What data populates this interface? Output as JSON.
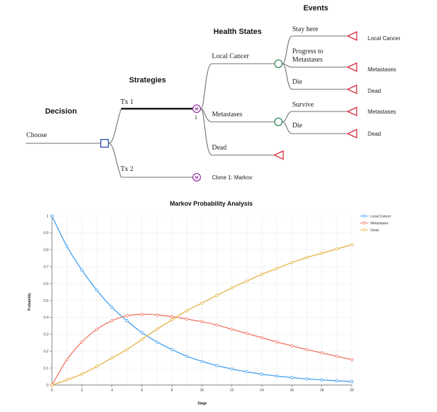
{
  "tree": {
    "headers": {
      "decision": "Decision",
      "strategies": "Strategies",
      "health_states": "Health States",
      "events": "Events"
    },
    "root_label": "Choose",
    "strategies": [
      {
        "label": "Tx 1",
        "node_glyph": "M",
        "node_sub": "1"
      },
      {
        "label": "Tx 2",
        "node_glyph": "M",
        "clone_label": "Clone 1: Markov"
      }
    ],
    "states": {
      "local_cancer": "Local Cancer",
      "metastases": "Metastases",
      "dead": "Dead"
    },
    "events": {
      "stay_here": "Stay here",
      "progress_line1": "Progress to",
      "progress_line2": "Metastases",
      "die_local": "Die",
      "survive": "Survive",
      "die_meta": "Die"
    },
    "outcomes": {
      "stay": "Local Cancer",
      "progress": "Metastases",
      "die_local": "Dead",
      "survive": "Metastases",
      "die_meta": "Dead"
    },
    "colors": {
      "decision_node": "#2f4fb0",
      "markov_node": "#9b3aa8",
      "chance_node": "#2e8b57",
      "terminal_node": "#d2293a"
    }
  },
  "chart_data": {
    "type": "line",
    "title": "Markov Probability Analysis",
    "xlabel": "Stage",
    "ylabel": "Probability",
    "xlim": [
      0,
      20
    ],
    "ylim": [
      0,
      1
    ],
    "x_ticks": [
      0,
      2,
      4,
      6,
      8,
      10,
      12,
      14,
      16,
      18,
      20
    ],
    "y_ticks": [
      0,
      0.1,
      0.2,
      0.3,
      0.4,
      0.5,
      0.6,
      0.7,
      0.8,
      0.9,
      1
    ],
    "grid": true,
    "legend_position": "top-right",
    "x": [
      0,
      1,
      2,
      3,
      4,
      5,
      6,
      7,
      8,
      9,
      10,
      11,
      12,
      13,
      14,
      15,
      16,
      17,
      18,
      19,
      20
    ],
    "series": [
      {
        "name": "Local Cancer",
        "color": "#4aa3f0",
        "values": [
          1.0,
          0.82,
          0.68,
          0.56,
          0.46,
          0.38,
          0.31,
          0.255,
          0.21,
          0.17,
          0.14,
          0.115,
          0.095,
          0.078,
          0.064,
          0.053,
          0.044,
          0.036,
          0.03,
          0.025,
          0.02
        ]
      },
      {
        "name": "Metastases",
        "color": "#f07a6a",
        "values": [
          0.0,
          0.15,
          0.255,
          0.33,
          0.38,
          0.41,
          0.418,
          0.415,
          0.405,
          0.39,
          0.375,
          0.355,
          0.33,
          0.305,
          0.28,
          0.255,
          0.232,
          0.21,
          0.19,
          0.17,
          0.15
        ]
      },
      {
        "name": "Dead",
        "color": "#e8b54a",
        "values": [
          0.0,
          0.03,
          0.065,
          0.11,
          0.16,
          0.21,
          0.27,
          0.33,
          0.385,
          0.44,
          0.485,
          0.53,
          0.575,
          0.615,
          0.655,
          0.69,
          0.725,
          0.755,
          0.78,
          0.805,
          0.83
        ]
      }
    ]
  }
}
